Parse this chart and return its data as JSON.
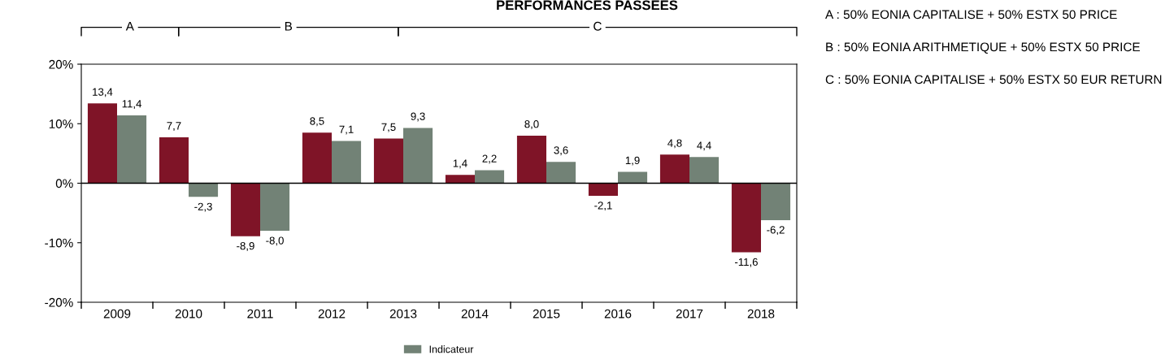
{
  "chart_data": {
    "type": "bar",
    "title": "PERFORMANCES PASSEES",
    "categories": [
      "2009",
      "2010",
      "2011",
      "2012",
      "2013",
      "2014",
      "2015",
      "2016",
      "2017",
      "2018"
    ],
    "series": [
      {
        "color": "#7f1427",
        "values": [
          13.4,
          7.7,
          -8.9,
          8.5,
          7.5,
          1.4,
          8.0,
          -2.1,
          4.8,
          -11.6
        ],
        "value_labels": [
          "13,4",
          "7,7",
          "-8,9",
          "8,5",
          "7,5",
          "1,4",
          "8,0",
          "-2,1",
          "4,8",
          "-11,6"
        ]
      },
      {
        "name": "Indicateur",
        "color": "#728276",
        "values": [
          11.4,
          -2.3,
          -8.0,
          7.1,
          9.3,
          2.2,
          3.6,
          1.9,
          4.4,
          -6.2
        ],
        "value_labels": [
          "11,4",
          "-2,3",
          "-8,0",
          "7,1",
          "9,3",
          "2,2",
          "3,6",
          "1,9",
          "4,4",
          "-6,2"
        ]
      }
    ],
    "ylim": [
      -20,
      20
    ],
    "yticks": [
      {
        "value": -20,
        "label": "-20%"
      },
      {
        "value": -10,
        "label": "-10%"
      },
      {
        "value": 0,
        "label": "0%"
      },
      {
        "value": 10,
        "label": "10%"
      },
      {
        "value": 20,
        "label": "20%"
      }
    ],
    "ref_lines": [
      {
        "axis": "y",
        "value": 0,
        "color": "#000000"
      }
    ],
    "annotations": [
      "A",
      "B",
      "C",
      "A : 50% EONIA CAPITALISE + 50% ESTX 50 PRICE",
      "B : 50% EONIA ARITHMETIQUE + 50% ESTX 50 PRICE",
      "C : 50% EONIA CAPITALISE + 50% ESTX 50 EUR RETURN"
    ],
    "grid": false,
    "legend": "bottom"
  }
}
